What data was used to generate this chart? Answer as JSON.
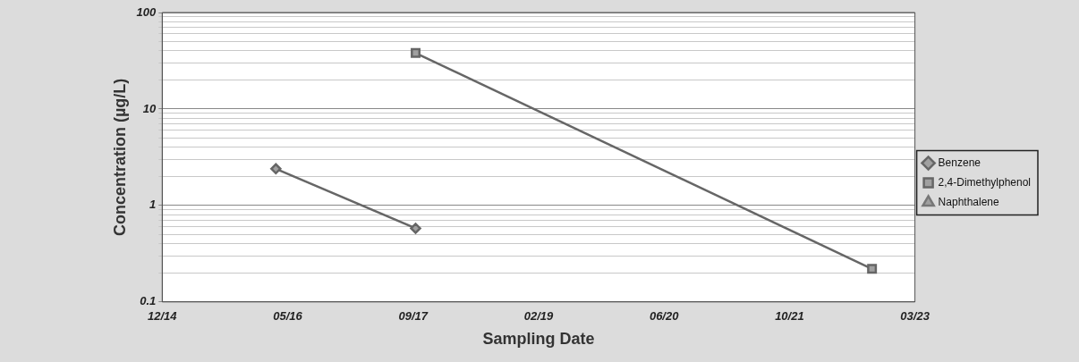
{
  "chart_data": {
    "type": "line",
    "xlabel": "Sampling Date",
    "ylabel": "Concentration (µg/L)",
    "log": "y",
    "grid": "y",
    "legend": "right",
    "line_style": "solid",
    "xlim": [
      "2014-12-25",
      "2023-03-13"
    ],
    "xticks": [
      {
        "value": "2014-12-25",
        "label": "12/14"
      },
      {
        "value": "2016-05-08",
        "label": "05/16"
      },
      {
        "value": "2017-09-20",
        "label": "09/17"
      },
      {
        "value": "2019-02-02",
        "label": "02/19"
      },
      {
        "value": "2020-06-16",
        "label": "06/20"
      },
      {
        "value": "2021-10-29",
        "label": "10/21"
      },
      {
        "value": "2023-03-13",
        "label": "03/23"
      }
    ],
    "ylim": [
      0.1,
      100
    ],
    "yticks": [
      0.1,
      {
        "value": 0.2,
        "label": null
      },
      {
        "value": 0.3,
        "label": null
      },
      {
        "value": 0.4,
        "label": null
      },
      {
        "value": 0.5,
        "label": null
      },
      {
        "value": 0.6,
        "label": null
      },
      {
        "value": 0.7,
        "label": null
      },
      {
        "value": 0.8,
        "label": null
      },
      {
        "value": 0.9,
        "label": null
      },
      1,
      {
        "value": 2,
        "label": null
      },
      {
        "value": 3,
        "label": null
      },
      {
        "value": 4,
        "label": null
      },
      {
        "value": 5,
        "label": null
      },
      {
        "value": 6,
        "label": null
      },
      {
        "value": 7,
        "label": null
      },
      {
        "value": 8,
        "label": null
      },
      {
        "value": 9,
        "label": null
      },
      10,
      {
        "value": 20,
        "label": null
      },
      {
        "value": 30,
        "label": null
      },
      {
        "value": 40,
        "label": null
      },
      {
        "value": 50,
        "label": null
      },
      {
        "value": 60,
        "label": null
      },
      {
        "value": 70,
        "label": null
      },
      {
        "value": 80,
        "label": null
      },
      {
        "value": 90,
        "label": null
      },
      100
    ],
    "series": [
      {
        "name": "Benzene",
        "color": "#666666",
        "marker": "diamond",
        "x": [
          "2016-03-22",
          "2017-09-30"
        ],
        "values": [
          2.4,
          0.58
        ]
      },
      {
        "name": "2,4-Dimethylphenol",
        "color": "#666666",
        "marker": "square",
        "x": [
          "2017-09-30",
          "2022-09-23"
        ],
        "values": [
          38,
          0.22
        ]
      },
      {
        "name": "Naphthalene",
        "color": "#777777",
        "marker": "triangle"
      }
    ]
  }
}
